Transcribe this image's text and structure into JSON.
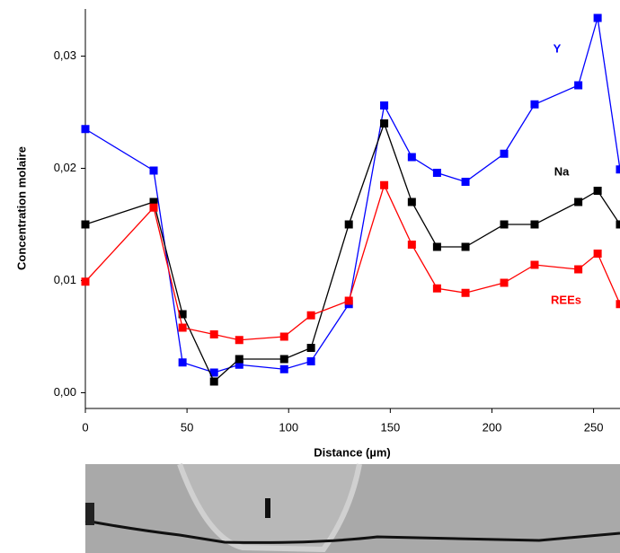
{
  "chart_data": {
    "type": "line",
    "x_label": "Distance (µm)",
    "y_label": "Concentration molaire",
    "x": [
      0,
      33.6,
      47.8,
      63.3,
      75.7,
      97.8,
      111,
      129.6,
      147,
      160.6,
      173,
      187,
      206,
      221,
      242.5,
      252,
      263
    ],
    "series": [
      {
        "name": "Y",
        "color": "#0000ff",
        "values": [
          0.0235,
          0.0198,
          0.0027,
          0.0018,
          0.0025,
          0.0021,
          0.0028,
          0.0079,
          0.0256,
          0.021,
          0.0196,
          0.0188,
          0.0213,
          0.0257,
          0.0274,
          0.0334,
          0.0199
        ]
      },
      {
        "name": "Na",
        "color": "#000000",
        "values": [
          0.015,
          0.017,
          0.007,
          0.001,
          0.003,
          0.003,
          0.004,
          0.015,
          0.024,
          0.017,
          0.013,
          0.013,
          0.015,
          0.015,
          0.017,
          0.018,
          0.015
        ]
      },
      {
        "name": "REEs",
        "color": "#ff0000",
        "values": [
          0.0099,
          0.0165,
          0.0058,
          0.0052,
          0.0047,
          0.005,
          0.0069,
          0.0082,
          0.0185,
          0.0132,
          0.0093,
          0.0089,
          0.0098,
          0.0114,
          0.011,
          0.0124,
          0.0079
        ]
      }
    ],
    "xlim": [
      0,
      263
    ],
    "xticks": [
      0,
      50,
      100,
      150,
      200,
      250
    ],
    "ylim": [
      -0.0014,
      0.0342
    ],
    "yticks": [
      {
        "value": 0,
        "label": "0,00"
      },
      {
        "value": 0.01,
        "label": "0,01"
      },
      {
        "value": 0.02,
        "label": "0,02"
      },
      {
        "value": 0.03,
        "label": "0,03"
      }
    ]
  }
}
